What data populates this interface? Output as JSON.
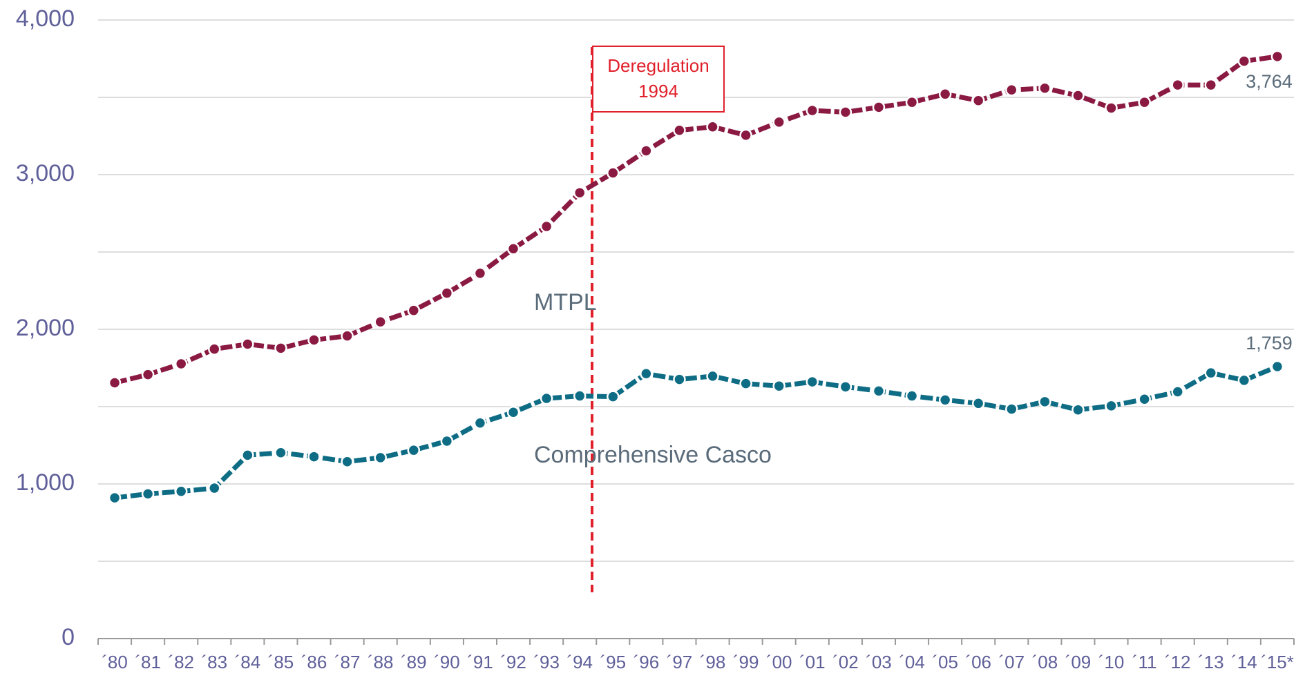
{
  "chart_data": {
    "type": "line",
    "categories": [
      "´80",
      "´81",
      "´82",
      "´83",
      "´84",
      "´85",
      "´86",
      "´87",
      "´88",
      "´89",
      "´90",
      "´91",
      "´92",
      "´93",
      "´94",
      "´95",
      "´96",
      "´97",
      "´98",
      "´99",
      "´00",
      "´01",
      "´02",
      "´03",
      "´04",
      "´05",
      "´06",
      "´07",
      "´08",
      "´09",
      "´10",
      "´11",
      "´12",
      "´13",
      "´14",
      "´15*"
    ],
    "series": [
      {
        "name": "MTPL",
        "color": "#8b1a42",
        "values": [
          1654,
          1707,
          1777,
          1872,
          1904,
          1878,
          1931,
          1957,
          2048,
          2122,
          2234,
          2362,
          2521,
          2665,
          2883,
          3011,
          3154,
          3287,
          3309,
          3255,
          3340,
          3415,
          3404,
          3436,
          3468,
          3521,
          3479,
          3548,
          3559,
          3511,
          3431,
          3468,
          3580,
          3580,
          3734,
          3764
        ],
        "value_labels": [
          null,
          null,
          null,
          null,
          null,
          null,
          null,
          null,
          null,
          null,
          null,
          null,
          null,
          null,
          null,
          null,
          null,
          null,
          null,
          null,
          null,
          null,
          null,
          null,
          null,
          null,
          null,
          null,
          null,
          null,
          null,
          null,
          null,
          null,
          null,
          "3,764"
        ]
      },
      {
        "name": "Comprehensive Casco",
        "color": "#0e6d85",
        "values": [
          910,
          936,
          952,
          973,
          1186,
          1202,
          1176,
          1144,
          1170,
          1218,
          1277,
          1394,
          1463,
          1553,
          1569,
          1564,
          1713,
          1676,
          1697,
          1649,
          1633,
          1660,
          1628,
          1601,
          1569,
          1543,
          1521,
          1484,
          1532,
          1479,
          1505,
          1548,
          1596,
          1718,
          1670,
          1759
        ],
        "value_labels": [
          null,
          null,
          null,
          null,
          null,
          null,
          null,
          null,
          null,
          null,
          null,
          null,
          null,
          null,
          null,
          null,
          null,
          null,
          null,
          null,
          null,
          null,
          null,
          null,
          null,
          null,
          null,
          null,
          null,
          null,
          null,
          null,
          null,
          null,
          null,
          "1,759"
        ]
      }
    ],
    "ylim": [
      0,
      4000
    ],
    "yticks": [
      0,
      {
        "value": 1000,
        "label": "1,000"
      },
      {
        "value": 2000,
        "label": "2,000"
      },
      {
        "value": 3000,
        "label": "3,000"
      },
      {
        "value": 4000,
        "label": "4,000"
      }
    ],
    "ygrid": [
      500,
      1500,
      2500,
      3500
    ],
    "grid": true,
    "annotation": [
      "Deregulation",
      "1994"
    ]
  }
}
